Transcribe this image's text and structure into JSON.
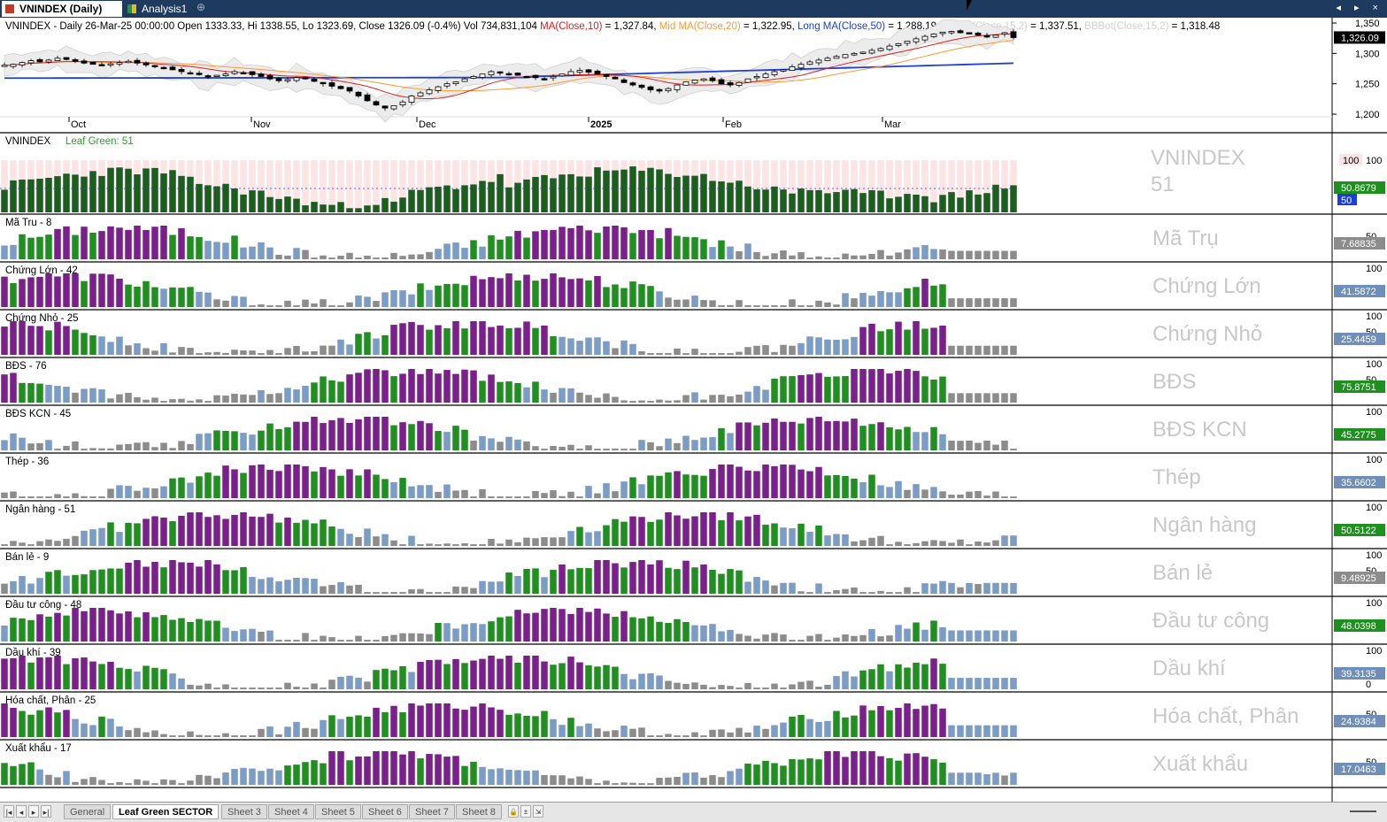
{
  "tabs": [
    {
      "label": "VNINDEX (Daily)",
      "active": true,
      "icon": "chart-icon"
    },
    {
      "label": "Analysis1",
      "active": false,
      "icon": "analysis-icon"
    }
  ],
  "new_tab_label": "⊕",
  "window_controls": "◂ ▸ ×",
  "price_pane": {
    "header_parts": [
      {
        "text": "VNINDEX - Daily 26-Mar-25 00:00:00 Open 1333.33, Hi 1338.55, Lo 1323.69, Close 1326.09 (-0.4%) Vol 734,831,104 ",
        "color": "#000000"
      },
      {
        "text": "MA(Close,10)",
        "color": "#e02020"
      },
      {
        "text": " = 1,327.84, ",
        "color": "#000000"
      },
      {
        "text": "Mid MA(Close,20)",
        "color": "#ff9933"
      },
      {
        "text": " = 1,322.95, ",
        "color": "#000000"
      },
      {
        "text": "Long MA(Close,50)",
        "color": "#1c3fd6"
      },
      {
        "text": " = 1,288.19, ",
        "color": "#000000"
      },
      {
        "text": "BBTop(Close,15,2)",
        "color": "#d0d0d0"
      },
      {
        "text": " = 1,337.51, ",
        "color": "#000000"
      },
      {
        "text": "BBBot(Close,15,2)",
        "color": "#d0d0d0"
      },
      {
        "text": " = 1,318.48",
        "color": "#000000"
      }
    ],
    "y_ticks": [
      "1,350",
      "1,300",
      "1,250",
      "1,200"
    ],
    "last_price": "1,326.09",
    "months": [
      "Oct",
      "Nov",
      "Dec",
      "2025",
      "Feb",
      "Mar"
    ],
    "ma_colors": {
      "ma10": "#e02020",
      "ma20": "#ff9933",
      "ma50": "#1c3fd6"
    }
  },
  "leaf_pane": {
    "label": "VNINDEX",
    "sub_label": "Leaf Green: 51",
    "watermark_line1": "VNINDEX",
    "watermark_line2": "51",
    "tick_100": "100",
    "tick_50": "50",
    "value": "50.8679"
  },
  "sectors": [
    {
      "label": "Mã Tru - 8",
      "watermark": "Mã Trụ",
      "value": "7.68835",
      "ticks": [
        "50"
      ]
    },
    {
      "label": "Chứng Lớn - 42",
      "watermark": "Chứng Lớn",
      "value": "41.5872",
      "ticks": [
        "100"
      ]
    },
    {
      "label": "Chứng Nhỏ - 25",
      "watermark": "Chứng Nhỏ",
      "value": "25.4459",
      "ticks": [
        "100",
        "50"
      ]
    },
    {
      "label": "BĐS - 76",
      "watermark": "BĐS",
      "value": "75.8751",
      "ticks": [
        "100",
        "50"
      ]
    },
    {
      "label": "BĐS KCN - 45",
      "watermark": "BĐS KCN",
      "value": "45.2775",
      "ticks": [
        "100"
      ]
    },
    {
      "label": "Thép - 36",
      "watermark": "Thép",
      "value": "35.6602",
      "ticks": [
        "100"
      ]
    },
    {
      "label": "Ngân hàng - 51",
      "watermark": "Ngân hàng",
      "value": "50.5122",
      "ticks": [
        "100"
      ]
    },
    {
      "label": "Bán lẻ - 9",
      "watermark": "Bán lẻ",
      "value": "9.48925",
      "ticks": [
        "100",
        "50"
      ]
    },
    {
      "label": "Đầu tư công - 48",
      "watermark": "Đầu tư công",
      "value": "48.0398",
      "ticks": [
        "100"
      ]
    },
    {
      "label": "Dầu khí - 39",
      "watermark": "Dầu khí",
      "value": "39.3135",
      "ticks": [
        "100",
        "0"
      ]
    },
    {
      "label": "Hóa chất, Phân - 25",
      "watermark": "Hóa chất, Phân",
      "value": "24.9384",
      "ticks": [
        "50"
      ]
    },
    {
      "label": "Xuất khẩu - 17",
      "watermark": "Xuất khẩu",
      "value": "17.0463",
      "ticks": [
        "50"
      ]
    }
  ],
  "colors": {
    "strong": "#7b1f8c",
    "up": "#1f8f1f",
    "neutral": "#7a9cc6",
    "weak": "#8c8c8c",
    "leaf_green": "#1b5e20",
    "leaf_badge": "#1f8f1f",
    "sell_badge": "#6f8fb8",
    "weak_badge": "#8c8c8c",
    "blue_50_badge": "#1c3fd6"
  },
  "sheets": [
    "General",
    "Leaf Green SECTOR",
    "Sheet 3",
    "Sheet 4",
    "Sheet 5",
    "Sheet 6",
    "Sheet 7",
    "Sheet 8"
  ],
  "active_sheet": "Leaf Green SECTOR",
  "nav_buttons": [
    "|◂",
    "◂",
    "▸",
    "▸|"
  ]
}
